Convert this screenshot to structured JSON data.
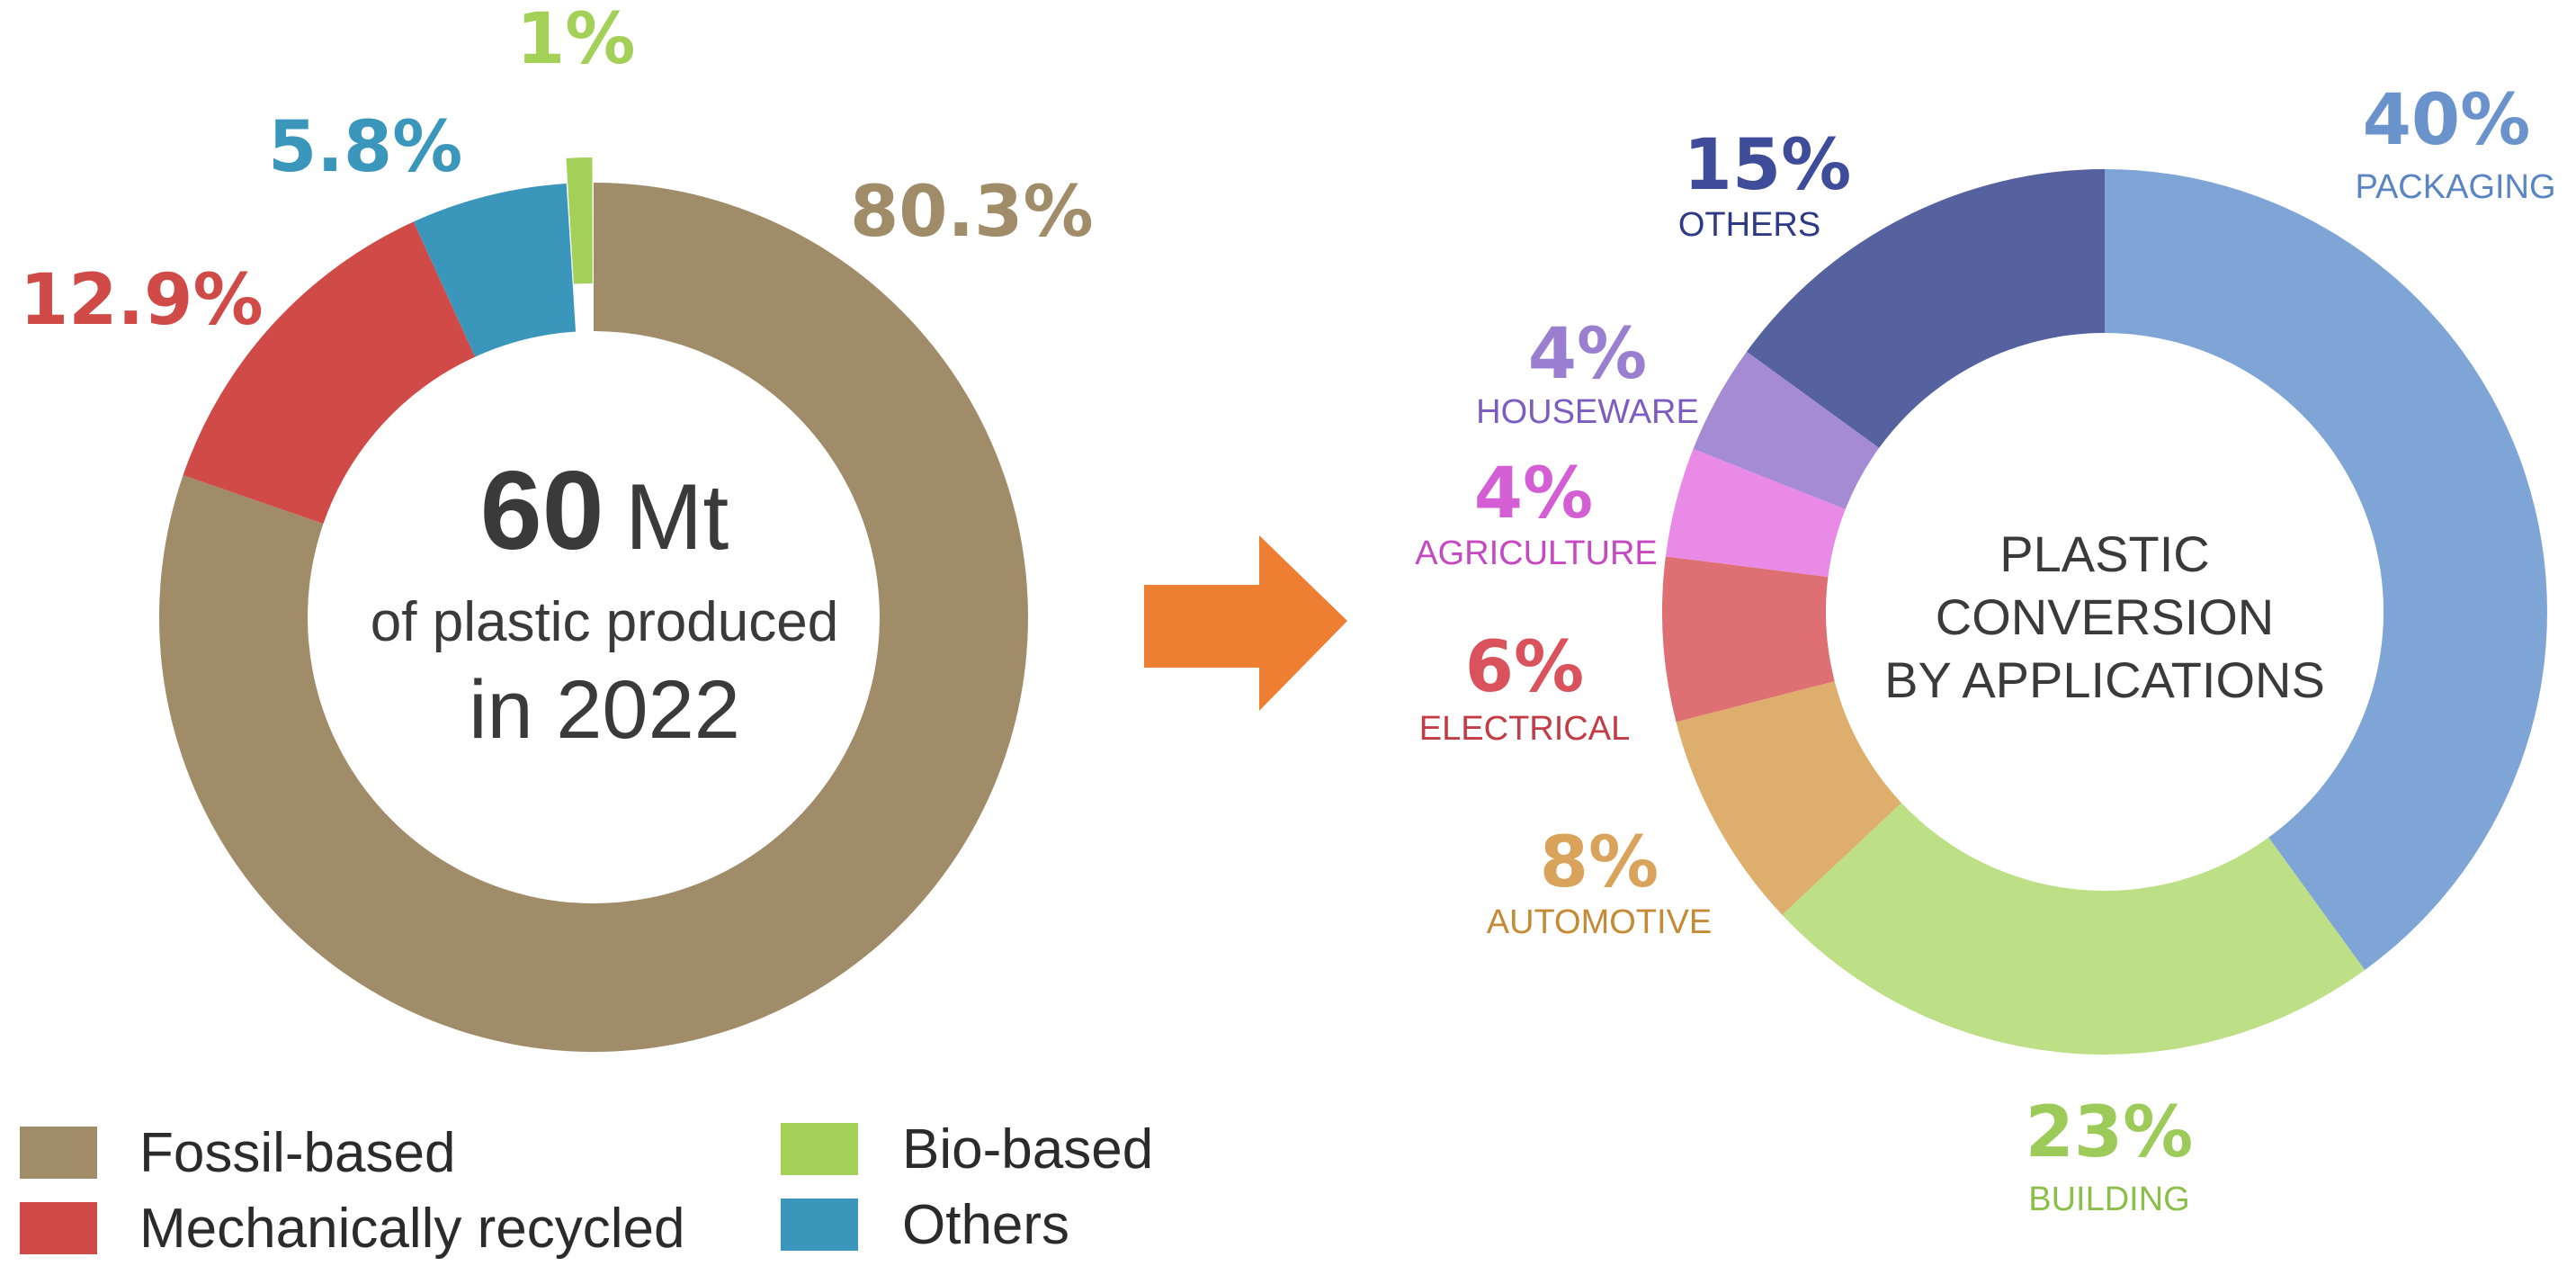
{
  "chart_data": [
    {
      "type": "pie",
      "variant": "donut",
      "title_number": "60",
      "title_unit": "Mt",
      "subtitle_line1": "of plastic produced",
      "subtitle_line2": "in 2022",
      "slices": [
        {
          "name": "Fossil-based",
          "value": 80.3,
          "label": "80.3%",
          "color": "#a08c68",
          "label_color": "#a08c68"
        },
        {
          "name": "Mechanically recycled",
          "value": 12.9,
          "label": "12.9%",
          "color": "#d04b48",
          "label_color": "#d04b48"
        },
        {
          "name": "Others",
          "value": 5.8,
          "label": "5.8%",
          "color": "#3a97bb",
          "label_color": "#3a97bb"
        },
        {
          "name": "Bio-based",
          "value": 1,
          "label": "1%",
          "color": "#a3d056",
          "label_color": "#a3d056",
          "exploded": true
        }
      ],
      "legend": [
        {
          "label": "Fossil-based",
          "color": "#a08c68"
        },
        {
          "label": "Mechanically recycled",
          "color": "#d04b48"
        },
        {
          "label": "Bio-based",
          "color": "#a3d056"
        },
        {
          "label": "Others",
          "color": "#3a97bb"
        }
      ],
      "legend_position": "bottom-left"
    },
    {
      "type": "pie",
      "variant": "donut",
      "center_line1": "PLASTIC",
      "center_line2": "CONVERSION",
      "center_line3": "BY APPLICATIONS",
      "slices": [
        {
          "name": "PACKAGING",
          "value": 40,
          "label": "40%",
          "color": "#7fa4d6",
          "label_color": "#6a93cc"
        },
        {
          "name": "BUILDING",
          "value": 23,
          "label": "23%",
          "color": "#bde087",
          "label_color": "#9ccb5a"
        },
        {
          "name": "AUTOMOTIVE",
          "value": 8,
          "label": "8%",
          "color": "#deae6c",
          "label_color": "#d9a35c"
        },
        {
          "name": "ELECTRICAL",
          "value": 6,
          "label": "6%",
          "color": "#de7073",
          "label_color": "#d9525c"
        },
        {
          "name": "AGRICULTURE",
          "value": 4,
          "label": "4%",
          "color": "#e88ae6",
          "label_color": "#d45ed3"
        },
        {
          "name": "HOUSEWARE",
          "value": 4,
          "label": "4%",
          "color": "#a58bd4",
          "label_color": "#9a7fd0"
        },
        {
          "name": "OTHERS",
          "value": 15,
          "label": "15%",
          "color": "#56619f",
          "label_color": "#3f4c9a"
        }
      ]
    }
  ],
  "colors": {
    "arrow": "#ee7e32",
    "category_text": {
      "PACKAGING": "#5b85c2",
      "BUILDING": "#8cbf4a",
      "AUTOMOTIVE": "#c58a35",
      "ELECTRICAL": "#c23b45",
      "AGRICULTURE": "#c648c3",
      "HOUSEWARE": "#7c5cc0",
      "OTHERS": "#2f3a86"
    }
  },
  "arrow_icon": "right-arrow-icon"
}
